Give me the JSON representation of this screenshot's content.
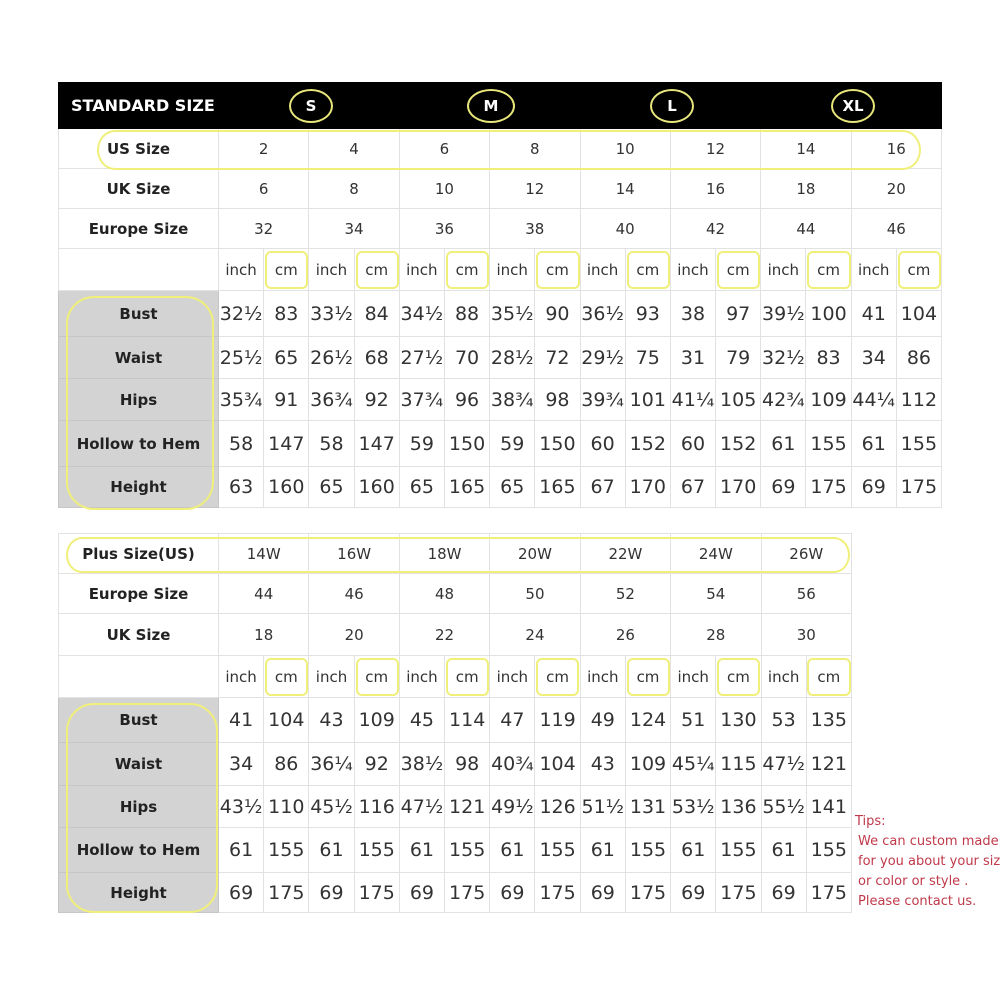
{
  "standard": {
    "title": "STANDARD SIZE",
    "size_groups": [
      "S",
      "M",
      "L",
      "XL"
    ],
    "size_rows": [
      {
        "label": "US Size",
        "values": [
          "2",
          "4",
          "6",
          "8",
          "10",
          "12",
          "14",
          "16"
        ]
      },
      {
        "label": "UK Size",
        "values": [
          "6",
          "8",
          "10",
          "12",
          "14",
          "16",
          "18",
          "20"
        ]
      },
      {
        "label": "Europe Size",
        "values": [
          "32",
          "34",
          "36",
          "38",
          "40",
          "42",
          "44",
          "46"
        ]
      }
    ],
    "unit_inch": "inch",
    "unit_cm": "cm",
    "measurements": [
      {
        "label": "Bust",
        "values": [
          "32½",
          "83",
          "33½",
          "84",
          "34½",
          "88",
          "35½",
          "90",
          "36½",
          "93",
          "38",
          "97",
          "39½",
          "100",
          "41",
          "104"
        ]
      },
      {
        "label": "Waist",
        "values": [
          "25½",
          "65",
          "26½",
          "68",
          "27½",
          "70",
          "28½",
          "72",
          "29½",
          "75",
          "31",
          "79",
          "32½",
          "83",
          "34",
          "86"
        ]
      },
      {
        "label": "Hips",
        "values": [
          "35¾",
          "91",
          "36¾",
          "92",
          "37¾",
          "96",
          "38¾",
          "98",
          "39¾",
          "101",
          "41¼",
          "105",
          "42¾",
          "109",
          "44¼",
          "112"
        ]
      },
      {
        "label": "Hollow to Hem",
        "values": [
          "58",
          "147",
          "58",
          "147",
          "59",
          "150",
          "59",
          "150",
          "60",
          "152",
          "60",
          "152",
          "61",
          "155",
          "61",
          "155"
        ]
      },
      {
        "label": "Height",
        "values": [
          "63",
          "160",
          "65",
          "160",
          "65",
          "165",
          "65",
          "165",
          "67",
          "170",
          "67",
          "170",
          "69",
          "175",
          "69",
          "175"
        ]
      }
    ]
  },
  "plus": {
    "size_rows": [
      {
        "label": "Plus Size(US)",
        "values": [
          "14W",
          "16W",
          "18W",
          "20W",
          "22W",
          "24W",
          "26W"
        ]
      },
      {
        "label": "Europe Size",
        "values": [
          "44",
          "46",
          "48",
          "50",
          "52",
          "54",
          "56"
        ]
      },
      {
        "label": "UK Size",
        "values": [
          "18",
          "20",
          "22",
          "24",
          "26",
          "28",
          "30"
        ]
      }
    ],
    "unit_inch": "inch",
    "unit_cm": "cm",
    "measurements": [
      {
        "label": "Bust",
        "values": [
          "41",
          "104",
          "43",
          "109",
          "45",
          "114",
          "47",
          "119",
          "49",
          "124",
          "51",
          "130",
          "53",
          "135"
        ]
      },
      {
        "label": "Waist",
        "values": [
          "34",
          "86",
          "36¼",
          "92",
          "38½",
          "98",
          "40¾",
          "104",
          "43",
          "109",
          "45¼",
          "115",
          "47½",
          "121"
        ]
      },
      {
        "label": "Hips",
        "values": [
          "43½",
          "110",
          "45½",
          "116",
          "47½",
          "121",
          "49½",
          "126",
          "51½",
          "131",
          "53½",
          "136",
          "55½",
          "141"
        ]
      },
      {
        "label": "Hollow to Hem",
        "values": [
          "61",
          "155",
          "61",
          "155",
          "61",
          "155",
          "61",
          "155",
          "61",
          "155",
          "61",
          "155",
          "61",
          "155"
        ]
      },
      {
        "label": "Height",
        "values": [
          "69",
          "175",
          "69",
          "175",
          "69",
          "175",
          "69",
          "175",
          "69",
          "175",
          "69",
          "175",
          "69",
          "175"
        ]
      }
    ]
  },
  "tips": {
    "title": "Tips:",
    "lines": [
      "We can custom made",
      "for you about your size",
      "or color or style .",
      "Please contact us."
    ]
  },
  "colors": {
    "highlight": "#f0ef7a",
    "header_bg": "#000000",
    "label_bg": "#d3d3d3",
    "tips_text": "#c0394a"
  }
}
